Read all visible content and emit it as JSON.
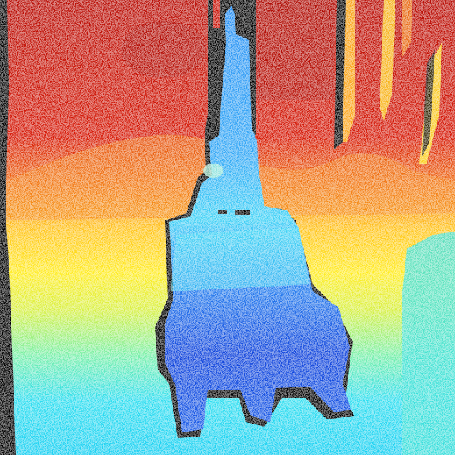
{
  "image": {
    "kind": "depth-map",
    "colormap": "jet",
    "colors": {
      "far_red": "#c81408",
      "mid_orange": "#f06a12",
      "mid_yellow": "#ffe81e",
      "near_cyan": "#22d8ee",
      "object_blue": "#1a72f0",
      "object_deep_blue": "#0a2ccc",
      "invalid_black": "#000000"
    }
  }
}
